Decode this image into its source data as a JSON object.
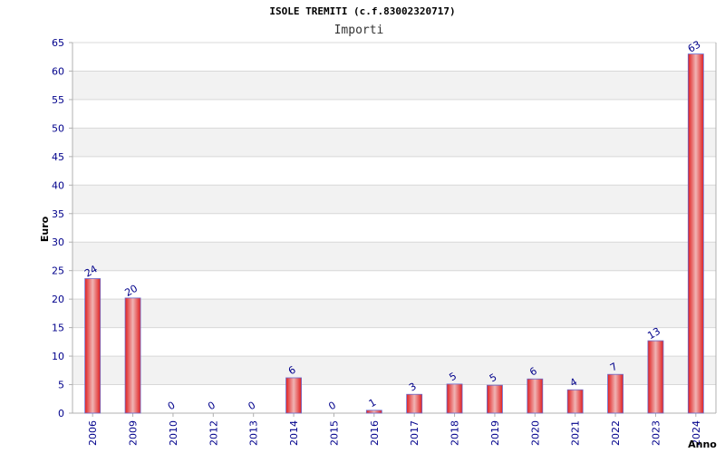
{
  "chart_data": {
    "type": "bar",
    "title": "ISOLE TREMITI (c.f.83002320717)",
    "subtitle": "Importi",
    "xlabel": "Anno",
    "ylabel": "Euro",
    "ylim": [
      0,
      65
    ],
    "ytick_step": 5,
    "yticks": [
      "0",
      "5",
      "10",
      "15",
      "20",
      "25",
      "30",
      "35",
      "40",
      "45",
      "50",
      "55",
      "60",
      "65"
    ],
    "grid": true,
    "categories": [
      "2006",
      "2009",
      "2010",
      "2012",
      "2013",
      "2014",
      "2015",
      "2016",
      "2017",
      "2018",
      "2019",
      "2020",
      "2021",
      "2022",
      "2023",
      "2024"
    ],
    "values": [
      23.6,
      20.2,
      0,
      0,
      0,
      6.2,
      0,
      0.5,
      3.3,
      5.1,
      4.9,
      6.0,
      4.1,
      6.8,
      12.7,
      63.0
    ],
    "data_labels": [
      "24",
      "20",
      "0",
      "0",
      "0",
      "6",
      "0",
      "1",
      "3",
      "5",
      "5",
      "6",
      "4",
      "7",
      "13",
      "63"
    ],
    "colors": {
      "bar_center": "#f0b4b4",
      "bar_edge": "#e02020",
      "bar_outline": "#6a6acd",
      "band": "#f2f2f2",
      "grid": "#d8d8d8",
      "axis": "#b0b0b0",
      "tick_text": "#00008b"
    }
  }
}
